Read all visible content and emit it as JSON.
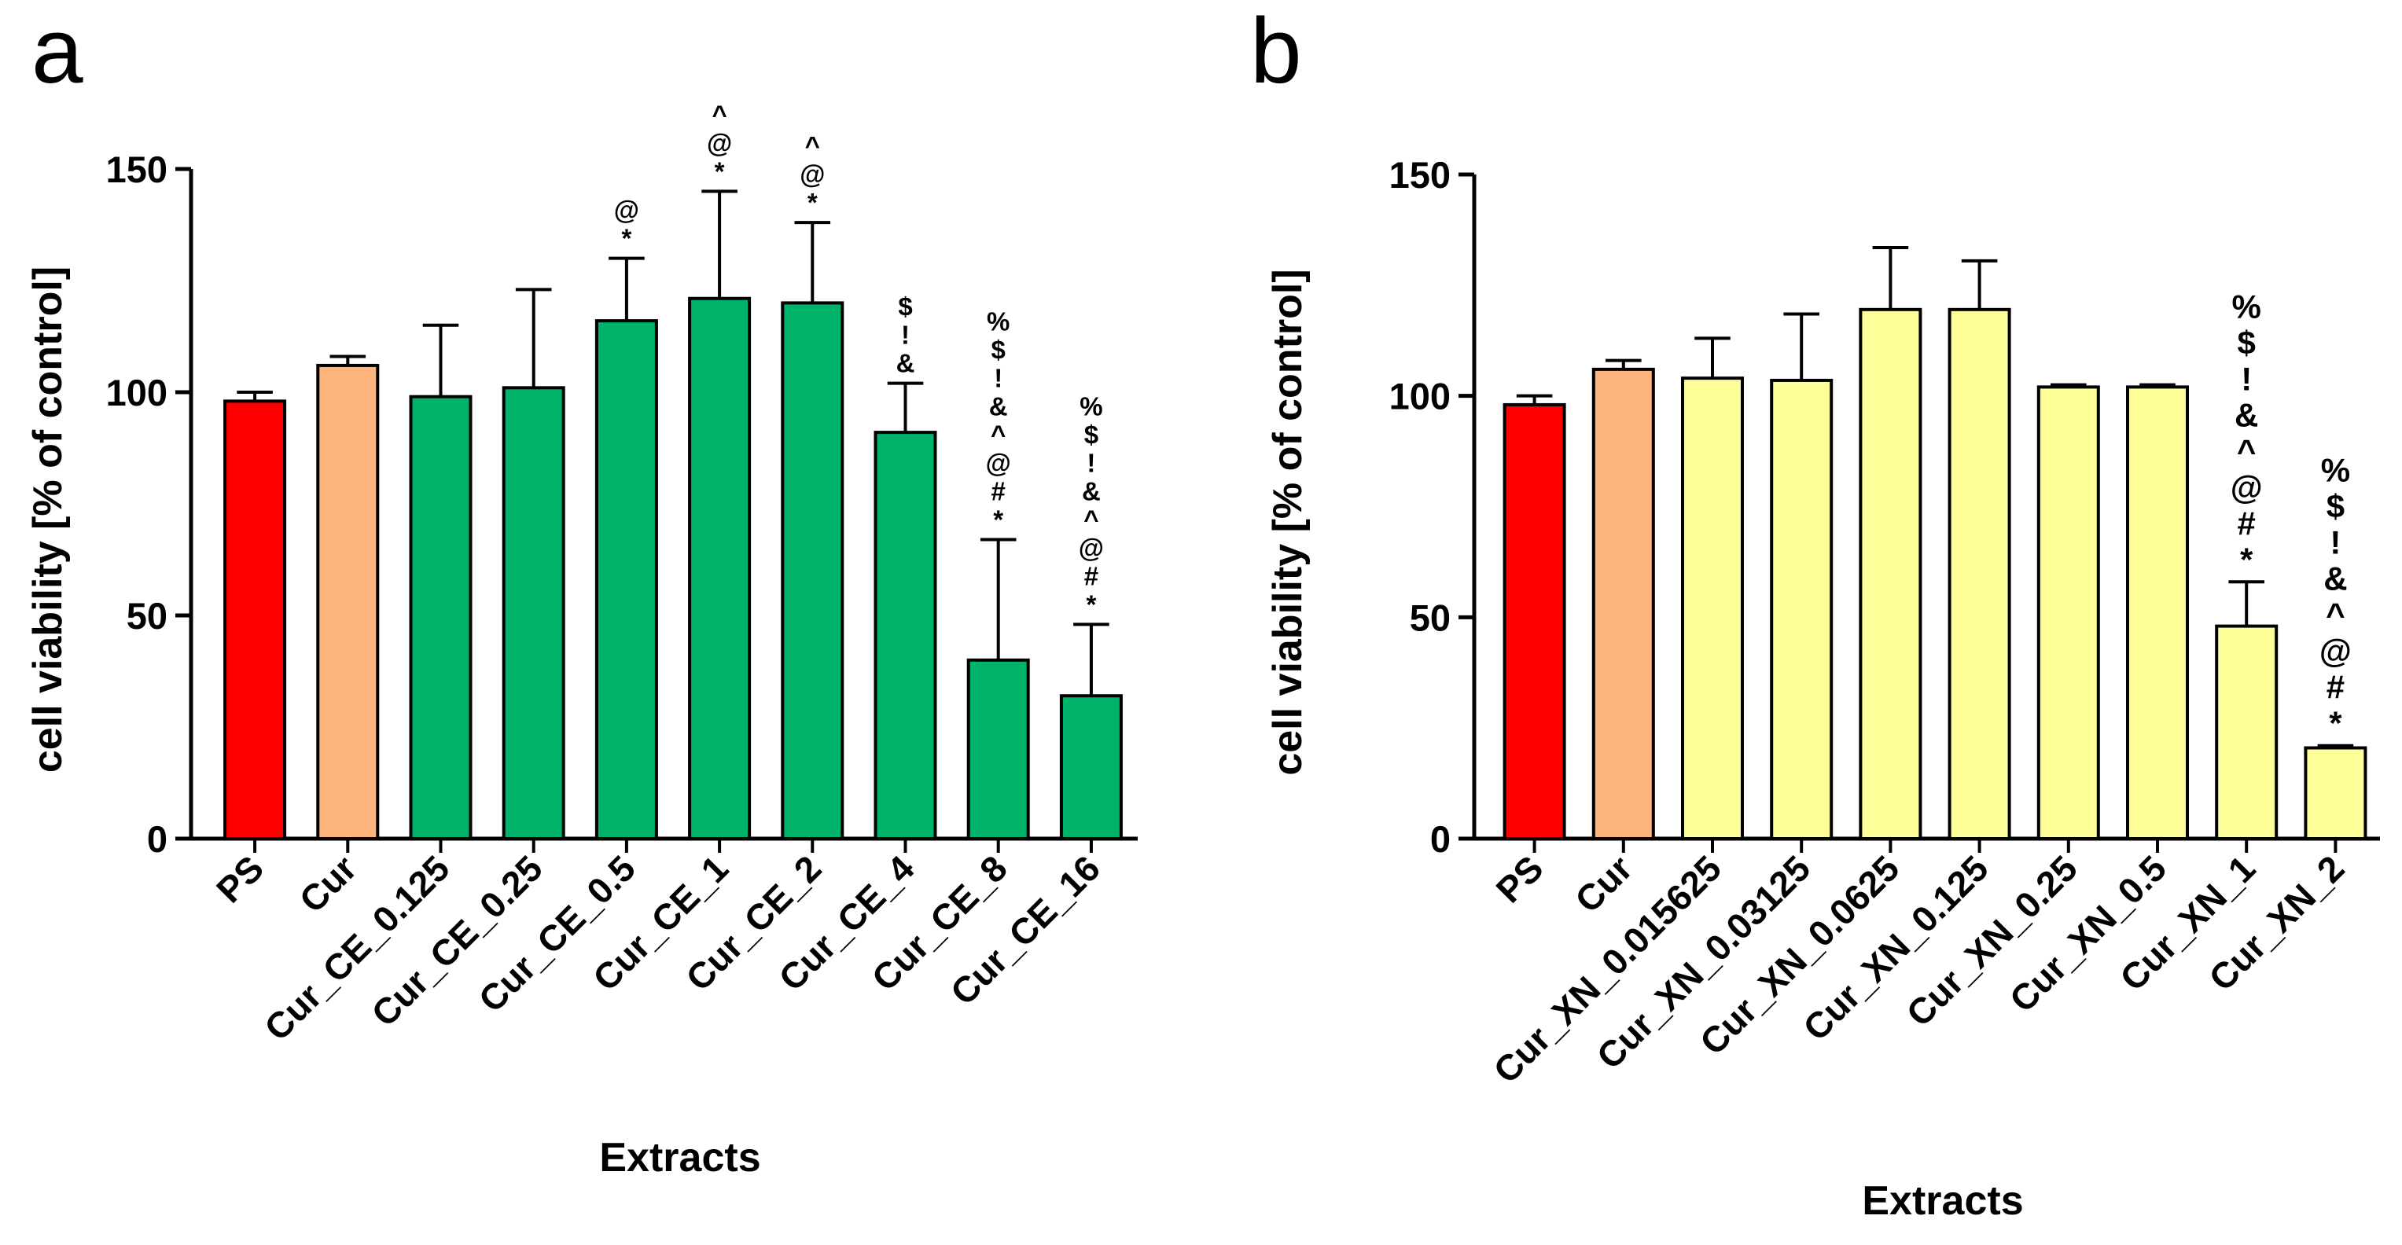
{
  "figure": {
    "panels": [
      "a",
      "b"
    ]
  },
  "colors": {
    "red": "#ff0000",
    "orange": "#fdb47d",
    "green": "#00b36b",
    "yellow": "#ffff99"
  },
  "chart_data": [
    {
      "panel": "a",
      "type": "bar",
      "title": "",
      "xlabel": "Extracts",
      "ylabel": "cell viability [% of control]",
      "ylim": [
        0,
        150
      ],
      "yticks": [
        0,
        50,
        100,
        150
      ],
      "categories": [
        "PS",
        "Cur",
        "Cur_CE_0.125",
        "Cur_CE_0.25",
        "Cur_CE_0.5",
        "Cur_CE_1",
        "Cur_CE_2",
        "Cur_CE_4",
        "Cur_CE_8",
        "Cur_CE_16"
      ],
      "values": [
        98,
        106,
        99,
        101,
        116,
        121,
        120,
        91,
        40,
        32
      ],
      "errors": [
        2,
        2,
        16,
        22,
        14,
        24,
        18,
        11,
        27,
        16
      ],
      "bar_colors": [
        "#ff0000",
        "#fdb47d",
        "#00b36b",
        "#00b36b",
        "#00b36b",
        "#00b36b",
        "#00b36b",
        "#00b36b",
        "#00b36b",
        "#00b36b"
      ],
      "annotations": [
        [],
        [],
        [],
        [],
        [
          "@",
          "*"
        ],
        [
          "^",
          "@",
          "*"
        ],
        [
          "^",
          "@",
          "*"
        ],
        [
          "$",
          "!",
          "&"
        ],
        [
          "%",
          "$",
          "!",
          "&",
          "^",
          "@",
          "#",
          "*"
        ],
        [
          "%",
          "$",
          "!",
          "&",
          "^",
          "@",
          "#",
          "*"
        ]
      ]
    },
    {
      "panel": "b",
      "type": "bar",
      "title": "",
      "xlabel": "Extracts",
      "ylabel": "cell viability [% of control]",
      "ylim": [
        0,
        150
      ],
      "yticks": [
        0,
        50,
        100,
        150
      ],
      "categories": [
        "PS",
        "Cur",
        "Cur_XN_0.015625",
        "Cur_XN_0.03125",
        "Cur_XN_0.0625",
        "Cur_XN_0.125",
        "Cur_XN_0.25",
        "Cur_XN_0.5",
        "Cur_XN_1",
        "Cur_XN_2"
      ],
      "values": [
        98,
        106,
        104,
        103.5,
        119.5,
        119.5,
        102,
        102,
        48,
        20.5
      ],
      "errors": [
        2,
        2,
        9,
        15,
        14,
        11,
        0.5,
        0.5,
        10,
        0.5
      ],
      "bar_colors": [
        "#ff0000",
        "#fdb47d",
        "#ffff99",
        "#ffff99",
        "#ffff99",
        "#ffff99",
        "#ffff99",
        "#ffff99",
        "#ffff99",
        "#ffff99"
      ],
      "annotations": [
        [],
        [],
        [],
        [],
        [],
        [],
        [],
        [],
        [
          "%",
          "$",
          "!",
          "&",
          "^",
          "@",
          "#",
          "*"
        ],
        [
          "%",
          "$",
          "!",
          "&",
          "^",
          "@",
          "#",
          "*"
        ]
      ]
    }
  ]
}
